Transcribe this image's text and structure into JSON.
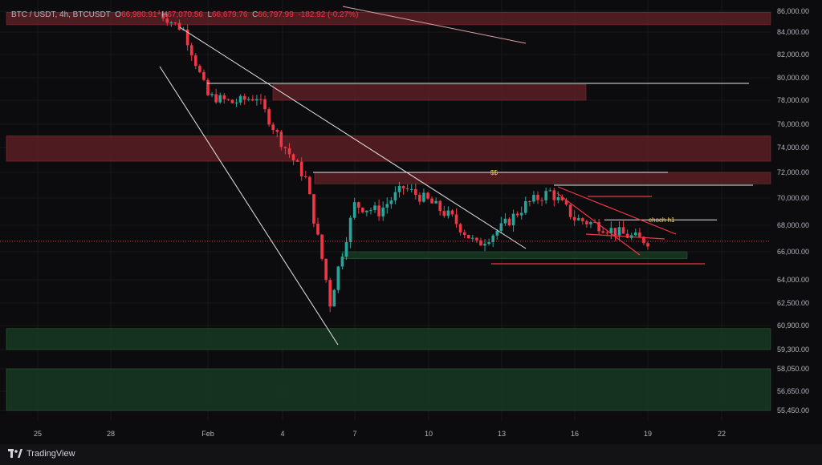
{
  "header": {
    "symbol": "BTC / USDT, 4h, BTCUSDT",
    "open_label": "O",
    "open": "66,980.91",
    "high_label": "H",
    "high": "67,070.56",
    "low_label": "L",
    "low": "66,679.76",
    "close_label": "C",
    "close": "66,797.99",
    "change": "-182.92 (-0.27%)"
  },
  "footer": {
    "brand": "TradingView"
  },
  "colors": {
    "background": "#0c0c0e",
    "up": "#26a69a",
    "down": "#f23645",
    "resistance_zone": "#5b1f25",
    "support_zone": "#173a22",
    "line": "#e6e6e6",
    "annotation": "#f0d060"
  },
  "chart_data": {
    "type": "candlestick",
    "y_ticks": [
      "86,000.00",
      "84,000.00",
      "82,000.00",
      "80,000.00",
      "78,000.00",
      "76,000.00",
      "74,000.00",
      "72,000.00",
      "70,000.00",
      "68,000.00",
      "66,000.00",
      "64,000.00",
      "62,500.00",
      "60,900.00",
      "59,300.00",
      "58,050.00",
      "56,650.00",
      "55,450.00"
    ],
    "x_ticks": [
      "25",
      "28",
      "Feb",
      "4",
      "7",
      "10",
      "13",
      "16",
      "19",
      "22"
    ],
    "last_price": 66798,
    "price_trend": [
      {
        "t": "Jan 30",
        "p": 85800
      },
      {
        "t": "Jan 31",
        "p": 84200
      },
      {
        "t": "Feb 1",
        "p": 78400
      },
      {
        "t": "Feb 2",
        "p": 77800
      },
      {
        "t": "Feb 3",
        "p": 78300
      },
      {
        "t": "Feb 4",
        "p": 74500
      },
      {
        "t": "Feb 5",
        "p": 71500
      },
      {
        "t": "Feb 6",
        "p": 62500
      },
      {
        "t": "Feb 7",
        "p": 69500
      },
      {
        "t": "Feb 8",
        "p": 69000
      },
      {
        "t": "Feb 9",
        "p": 70800
      },
      {
        "t": "Feb 10",
        "p": 69800
      },
      {
        "t": "Feb 11",
        "p": 68500
      },
      {
        "t": "Feb 12",
        "p": 66500
      },
      {
        "t": "Feb 13",
        "p": 67800
      },
      {
        "t": "Feb 14",
        "p": 69500
      },
      {
        "t": "Feb 15",
        "p": 70500
      },
      {
        "t": "Feb 16",
        "p": 68500
      },
      {
        "t": "Feb 17",
        "p": 68000
      },
      {
        "t": "Feb 18",
        "p": 67300
      },
      {
        "t": "Feb 19",
        "p": 66800
      }
    ],
    "zones": [
      {
        "kind": "resistance",
        "from": 84700,
        "to": 85900
      },
      {
        "kind": "resistance",
        "from": 78000,
        "to": 79400
      },
      {
        "kind": "resistance",
        "from": 72900,
        "to": 75000
      },
      {
        "kind": "resistance",
        "from": 71100,
        "to": 72000
      },
      {
        "kind": "support",
        "from": 65500,
        "to": 66000
      },
      {
        "kind": "support",
        "from": 59300,
        "to": 60700
      },
      {
        "kind": "support",
        "from": 55450,
        "to": 58050
      }
    ],
    "levels": [
      {
        "price": 79500
      },
      {
        "price": 72000,
        "label": "$$"
      },
      {
        "price": 71000
      },
      {
        "price": 68400,
        "label": "choch h1"
      }
    ]
  }
}
